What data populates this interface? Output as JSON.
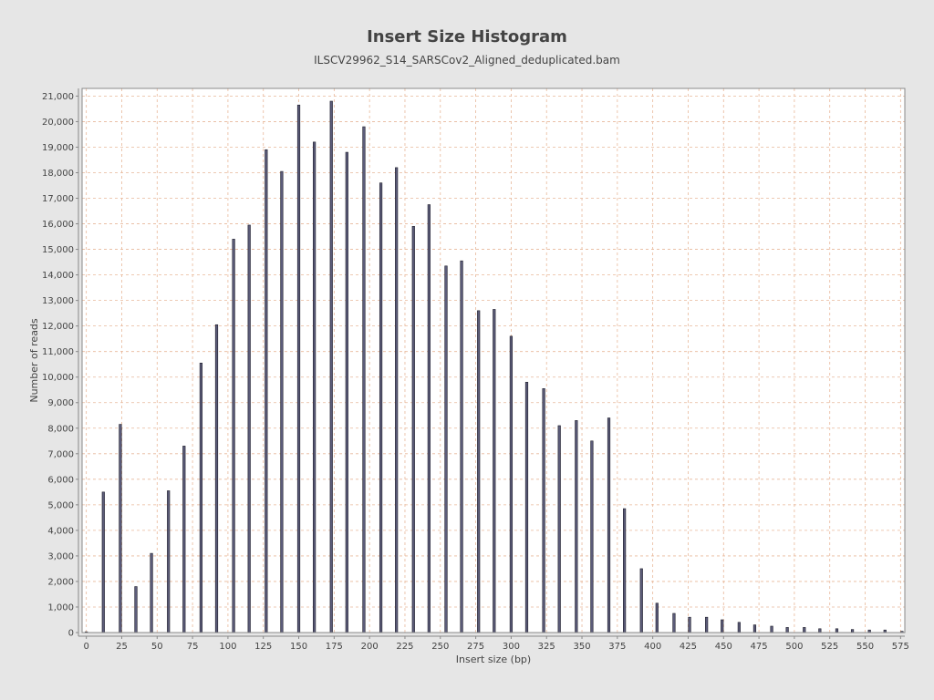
{
  "chart_data": {
    "type": "bar",
    "title": "Insert Size Histogram",
    "subtitle": "ILSCV29962_S14_SARSCov2_Aligned_deduplicated.bam",
    "xlabel": "Insert size (bp)",
    "ylabel": "Number of reads",
    "xlim": [
      -3,
      578
    ],
    "ylim": [
      0,
      21300
    ],
    "xticks": [
      0,
      25,
      50,
      75,
      100,
      125,
      150,
      175,
      200,
      225,
      250,
      275,
      300,
      325,
      350,
      375,
      400,
      425,
      450,
      475,
      500,
      525,
      550,
      575
    ],
    "xtick_labels": [
      "0",
      "25",
      "50",
      "75",
      "100",
      "125",
      "150",
      "175",
      "200",
      "225",
      "250",
      "275",
      "300",
      "325",
      "350",
      "375",
      "400",
      "425",
      "450",
      "475",
      "500",
      "525",
      "550",
      "575"
    ],
    "yticks": [
      0,
      1000,
      2000,
      3000,
      4000,
      5000,
      6000,
      7000,
      8000,
      9000,
      10000,
      11000,
      12000,
      13000,
      14000,
      15000,
      16000,
      17000,
      18000,
      19000,
      20000,
      21000
    ],
    "ytick_labels": [
      "0",
      "1,000",
      "2,000",
      "3,000",
      "4,000",
      "5,000",
      "6,000",
      "7,000",
      "8,000",
      "9,000",
      "10,000",
      "11,000",
      "12,000",
      "13,000",
      "14,000",
      "15,000",
      "16,000",
      "17,000",
      "18,000",
      "19,000",
      "20,000",
      "21,000"
    ],
    "grid": true,
    "legend": "none",
    "colors": {
      "bar_fill": "#5c5c7a",
      "bar_stroke": "#1e1e2a",
      "grid": "#e8b89a",
      "plot_bg": "#ffffff",
      "page_bg": "#e6e6e6",
      "axis": "#888888"
    },
    "x": [
      0,
      12,
      24,
      35,
      46,
      58,
      69,
      81,
      92,
      104,
      115,
      127,
      138,
      150,
      161,
      173,
      184,
      196,
      208,
      219,
      231,
      242,
      254,
      265,
      277,
      288,
      300,
      311,
      323,
      334,
      346,
      357,
      369,
      380,
      392,
      403,
      415,
      426,
      438,
      449,
      461,
      472,
      484,
      495,
      507,
      518,
      530,
      541,
      553,
      564,
      576
    ],
    "values": [
      30,
      5500,
      8150,
      1800,
      3100,
      5550,
      7300,
      10550,
      12050,
      15400,
      15950,
      18900,
      18050,
      20650,
      19200,
      20800,
      18800,
      19800,
      17600,
      18200,
      15900,
      16750,
      14350,
      14550,
      12600,
      12650,
      11600,
      9800,
      9550,
      8100,
      8300,
      7500,
      8400,
      4850,
      2500,
      1150,
      750,
      600,
      600,
      500,
      400,
      300,
      250,
      200,
      200,
      150,
      150,
      120,
      100,
      100,
      50
    ]
  }
}
